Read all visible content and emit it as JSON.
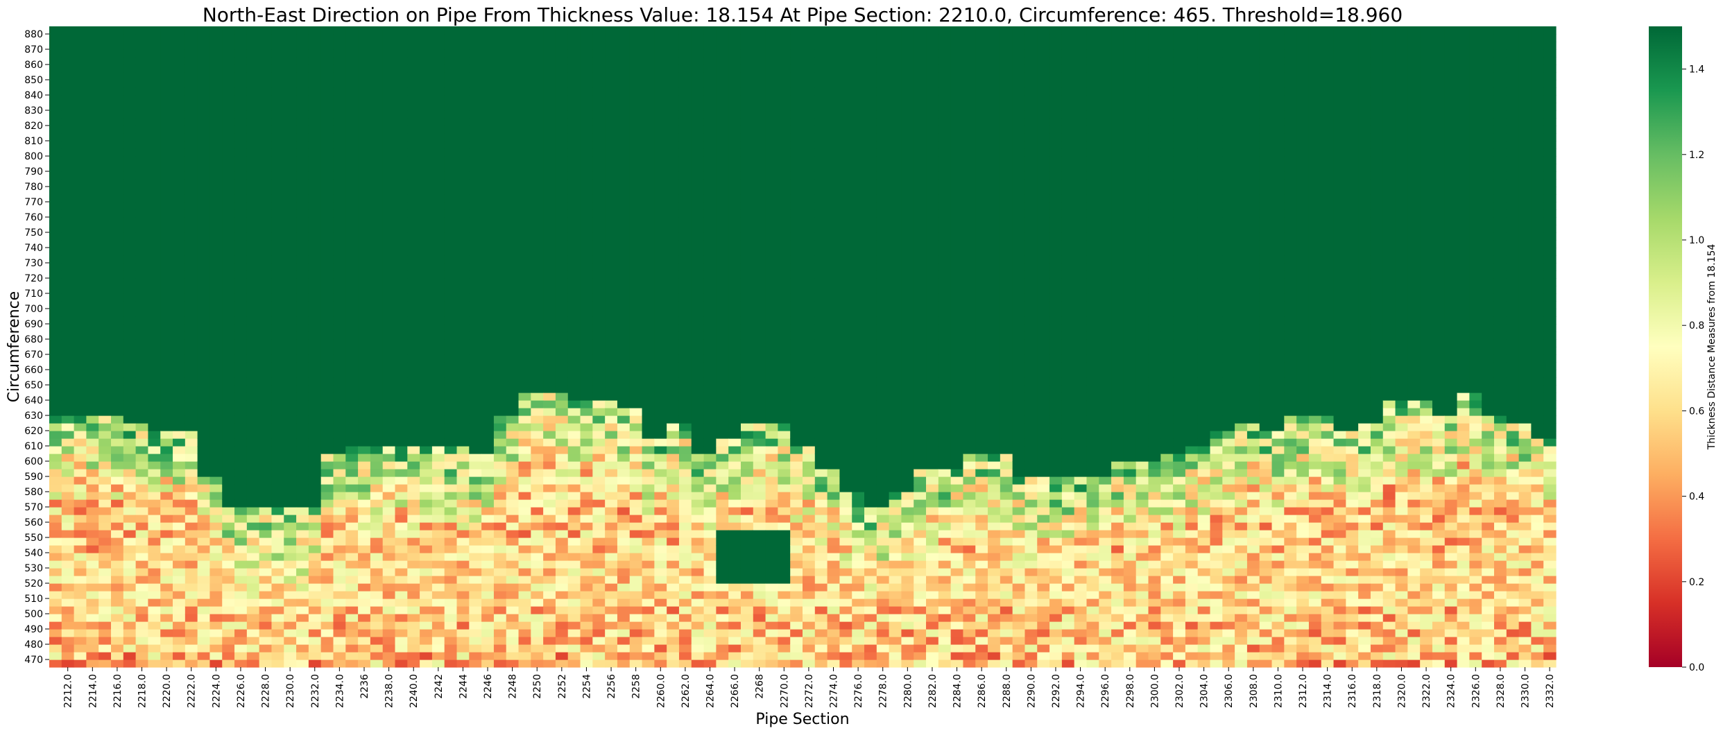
{
  "chart_data": {
    "type": "heatmap",
    "title": "North-East Direction on Pipe From Thickness Value: 18.154 At Pipe Section: 2210.0, Circumference: 465. Threshold=18.960",
    "xlabel": "Pipe Section",
    "ylabel": "Circumference",
    "colorbar_label": "Thickness Distance Measures from 18.154",
    "colormap": "RdYlGn",
    "colormap_stops": [
      "#a50026",
      "#d73027",
      "#f46d43",
      "#fdae61",
      "#fee08b",
      "#ffffbf",
      "#d9ef8b",
      "#a6d96a",
      "#66bd63",
      "#1a9850",
      "#006837"
    ],
    "vmin": 0.0,
    "vmax": 1.5,
    "colorbar_ticks": [
      "0.0",
      "0.2",
      "0.4",
      "0.6",
      "0.8",
      "1.0",
      "1.2",
      "1.4"
    ],
    "x_tick_labels": [
      "2212.0",
      "2214.0",
      "2216.0",
      "2218.0",
      "2220.0",
      "2222.0",
      "2224.0",
      "2226.0",
      "2228.0",
      "2230.0",
      "2232.0",
      "2234.0",
      "2236",
      "2238.0",
      "2240.0",
      "2242",
      "2244",
      "2246",
      "2248",
      "2250",
      "2252",
      "2254",
      "2256",
      "2258",
      "2260.0",
      "2262.0",
      "2264.0",
      "2266.0",
      "2268",
      "2270.0",
      "2272.0",
      "2274.0",
      "2276.0",
      "2278.0",
      "2280.0",
      "2282.0",
      "2284.0",
      "2286.0",
      "2288.0",
      "2290.0",
      "2292.0",
      "2294.0",
      "2296.0",
      "2298.0",
      "2300.0",
      "2302.0",
      "2304.0",
      "2306.0",
      "2308.0",
      "2310.0",
      "2312.0",
      "2314.0",
      "2316.0",
      "2318.0",
      "2320.0",
      "2322.0",
      "2324.0",
      "2326.0",
      "2328.0",
      "2330.0",
      "2332.0"
    ],
    "y_tick_labels": [
      "880",
      "870",
      "860",
      "850",
      "840",
      "830",
      "820",
      "810",
      "800",
      "790",
      "780",
      "770",
      "760",
      "750",
      "740",
      "730",
      "720",
      "710",
      "700",
      "690",
      "680",
      "670",
      "660",
      "650",
      "640",
      "630",
      "620",
      "610",
      "600",
      "590",
      "580",
      "570",
      "560",
      "550",
      "540",
      "530",
      "520",
      "510",
      "500",
      "490",
      "480",
      "470"
    ],
    "x_range": [
      2211,
      2333
    ],
    "y_range": [
      465,
      885
    ],
    "cell_width": 1,
    "cell_height": 5,
    "green_boundary_circumference": [
      628,
      628,
      628,
      626,
      618,
      618,
      590,
      570,
      570,
      570,
      570,
      605,
      608,
      608,
      612,
      612,
      608,
      605,
      630,
      645,
      645,
      640,
      640,
      635,
      613,
      626,
      605,
      615,
      625,
      625,
      610,
      595,
      580,
      570,
      580,
      595,
      595,
      605,
      605,
      590,
      590,
      590,
      590,
      600,
      602,
      603,
      610,
      620,
      625,
      620,
      630,
      630,
      620,
      625,
      640,
      640,
      630,
      645,
      630,
      625,
      615
    ],
    "green_pocket": {
      "x": [
        2265.5,
        2270.5
      ],
      "circumference": [
        522,
        555
      ]
    },
    "low_band_circumference": [
      505,
      540
    ],
    "low_band_typical_value": 0.6,
    "region_above_boundary_value": 1.5,
    "region_below_boundary_value_range": [
      0.2,
      1.4
    ]
  }
}
